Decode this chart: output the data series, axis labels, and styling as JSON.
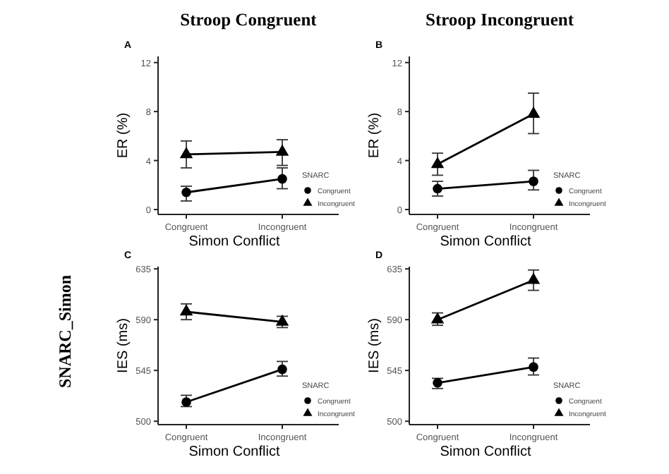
{
  "chart_data": [
    {
      "type": "line",
      "title": "Stroop Congruent",
      "xlabel": "Simon Conflict",
      "ylabel": "ER (%)",
      "legend_title": "SNARC",
      "annotations": [
        "A"
      ],
      "categories": [
        "Congruent",
        "Incongruent"
      ],
      "ylim": [
        -0.4,
        12.5
      ],
      "yticks": [
        0,
        4,
        8,
        12
      ],
      "legend": "bottom right",
      "grid": false,
      "series": [
        {
          "name": "Congruent",
          "color": "#000000",
          "marker": "circle",
          "values": [
            1.4,
            2.5
          ],
          "errors": [
            [
              0.7,
              1.9
            ],
            [
              1.7,
              3.4
            ]
          ]
        },
        {
          "name": "Incongruent",
          "color": "#000000",
          "marker": "triangle",
          "values": [
            4.5,
            4.7
          ],
          "errors": [
            [
              3.4,
              5.6
            ],
            [
              3.6,
              5.7
            ]
          ]
        }
      ]
    },
    {
      "type": "line",
      "title": "Stroop Incongruent",
      "xlabel": "Simon Conflict",
      "ylabel": "ER (%)",
      "legend_title": "SNARC",
      "annotations": [
        "B"
      ],
      "categories": [
        "Congruent",
        "Incongruent"
      ],
      "ylim": [
        -0.4,
        12.5
      ],
      "yticks": [
        0,
        4,
        8,
        12
      ],
      "legend": "bottom right",
      "grid": false,
      "series": [
        {
          "name": "Congruent",
          "color": "#000000",
          "marker": "circle",
          "values": [
            1.7,
            2.3
          ],
          "errors": [
            [
              1.1,
              2.3
            ],
            [
              1.6,
              3.2
            ]
          ]
        },
        {
          "name": "Incongruent",
          "color": "#000000",
          "marker": "triangle",
          "values": [
            3.7,
            7.8
          ],
          "errors": [
            [
              2.8,
              4.6
            ],
            [
              6.2,
              9.5
            ]
          ]
        }
      ]
    },
    {
      "type": "line",
      "xlabel": "Simon Conflict",
      "ylabel": "IES (ms)",
      "legend_title": "SNARC",
      "annotations": [
        "C",
        "SNARC_Simon"
      ],
      "categories": [
        "Congruent",
        "Incongruent"
      ],
      "ylim": [
        497,
        637
      ],
      "yticks": [
        500,
        545,
        590,
        635
      ],
      "legend": "bottom right",
      "grid": false,
      "series": [
        {
          "name": "Congruent",
          "color": "#000000",
          "marker": "circle",
          "values": [
            517,
            546
          ],
          "errors": [
            [
              513,
              523
            ],
            [
              540,
              553
            ]
          ]
        },
        {
          "name": "Incongruent",
          "color": "#000000",
          "marker": "triangle",
          "values": [
            597,
            588
          ],
          "errors": [
            [
              590,
              604
            ],
            [
              583,
              593
            ]
          ]
        }
      ]
    },
    {
      "type": "line",
      "xlabel": "Simon Conflict",
      "ylabel": "IES (ms)",
      "legend_title": "SNARC",
      "annotations": [
        "D"
      ],
      "categories": [
        "Congruent",
        "Incongruent"
      ],
      "ylim": [
        497,
        637
      ],
      "yticks": [
        500,
        545,
        590,
        635
      ],
      "legend": "bottom right",
      "grid": false,
      "series": [
        {
          "name": "Congruent",
          "color": "#000000",
          "marker": "circle",
          "values": [
            534,
            548
          ],
          "errors": [
            [
              529,
              538
            ],
            [
              541,
              556
            ]
          ]
        },
        {
          "name": "Incongruent",
          "color": "#000000",
          "marker": "triangle",
          "values": [
            590,
            625
          ],
          "errors": [
            [
              585,
              596
            ],
            [
              616,
              634
            ]
          ]
        }
      ]
    }
  ]
}
